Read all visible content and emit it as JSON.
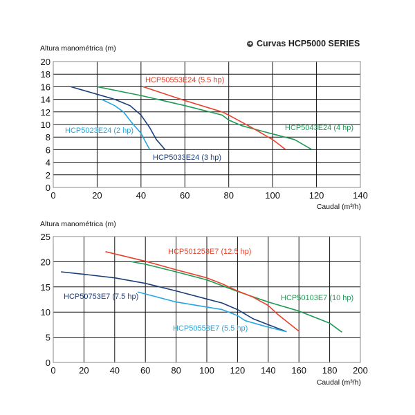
{
  "header": {
    "title": "Curvas HCP5000 SERIES",
    "icon": "arrow-circle-icon"
  },
  "chart_data": [
    {
      "type": "line",
      "ylabel": "Altura manométrica (m)",
      "xlabel": "Caudal (m³/h)",
      "xlim": [
        0,
        140
      ],
      "ylim": [
        0,
        20
      ],
      "xticks": [
        "0",
        "20",
        "40",
        "60",
        "80",
        "100",
        "120",
        "140"
      ],
      "yticks": [
        "0",
        "2",
        "4",
        "6",
        "8",
        "10",
        "12",
        "14",
        "16",
        "18",
        "20"
      ],
      "grid": true,
      "series": [
        {
          "name": "HCP5023E24 (2 hp)",
          "color": "#27a6de",
          "x": [
            22,
            28,
            32,
            36,
            40,
            44
          ],
          "y": [
            14,
            13,
            12,
            10.2,
            8.6,
            6
          ]
        },
        {
          "name": "HCP5033E24 (3 hp)",
          "color": "#1c3f7a",
          "x": [
            8,
            20,
            28,
            35,
            40,
            44,
            47,
            51
          ],
          "y": [
            16,
            14.8,
            14,
            13,
            11.5,
            9.5,
            7.6,
            6
          ]
        },
        {
          "name": "HCP5043E24 (4 hp)",
          "color": "#1e9a55",
          "x": [
            20,
            40,
            60,
            77,
            80,
            86,
            100,
            110,
            118
          ],
          "y": [
            16,
            14.6,
            13,
            11.5,
            10.7,
            9.8,
            8.5,
            7.6,
            6
          ]
        },
        {
          "name": "HCP50553E24 (5.5 hp)",
          "color": "#e8412a",
          "x": [
            41,
            60,
            77,
            80,
            90,
            100,
            106
          ],
          "y": [
            16,
            13.8,
            12,
            11.5,
            9.6,
            7.6,
            6
          ]
        }
      ]
    },
    {
      "type": "line",
      "ylabel": "Altura manométrica (m)",
      "xlabel": "Caudal (m³/h)",
      "xlim": [
        0,
        200
      ],
      "ylim": [
        0,
        25
      ],
      "xticks": [
        "0",
        "20",
        "40",
        "60",
        "80",
        "100",
        "120",
        "140",
        "160",
        "180",
        "200"
      ],
      "yticks": [
        "0",
        "5",
        "10",
        "15",
        "20",
        "25"
      ],
      "grid": true,
      "series": [
        {
          "name": "HCP50753E7 (7.5 hp)",
          "color": "#1c3f7a",
          "x": [
            5,
            20,
            40,
            60,
            80,
            100,
            110,
            120,
            130,
            140,
            152
          ],
          "y": [
            18,
            17.5,
            16.8,
            15.7,
            14.2,
            12.6,
            11.8,
            10.5,
            8.7,
            7.5,
            6.1
          ]
        },
        {
          "name": "HCP50553E7 (5.5 hp)",
          "color": "#27a6de",
          "x": [
            55,
            60,
            80,
            100,
            110,
            120,
            125,
            140,
            152
          ],
          "y": [
            14,
            13.6,
            12,
            11,
            10.5,
            9.3,
            8.3,
            7,
            6.1
          ]
        },
        {
          "name": "HCP50103E7 (10 hp)",
          "color": "#1e9a55",
          "x": [
            51,
            60,
            80,
            100,
            120,
            140,
            160,
            170,
            180,
            188
          ],
          "y": [
            20,
            19.5,
            18,
            16.4,
            14.1,
            12,
            10.2,
            9,
            7.8,
            6
          ]
        },
        {
          "name": "HCP501253E7 (12.5 hp)",
          "color": "#e8412a",
          "x": [
            34,
            60,
            80,
            100,
            110,
            120,
            130,
            140,
            146,
            160
          ],
          "y": [
            22,
            20.1,
            18.4,
            16.8,
            15.6,
            14.2,
            13,
            11.3,
            9.6,
            6.2
          ]
        }
      ]
    }
  ]
}
